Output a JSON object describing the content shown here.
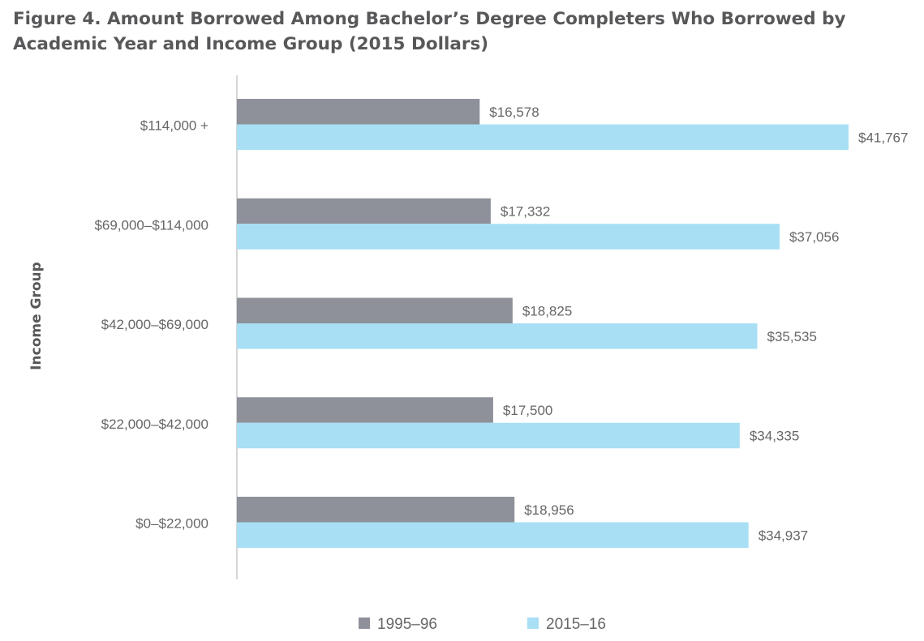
{
  "chart_data": {
    "type": "bar",
    "orientation": "horizontal",
    "title": "Figure 4. Amount Borrowed Among Bachelor’s Degree Completers Who Borrowed by Academic Year and Income Group (2015 Dollars)",
    "ylabel": "Income Group",
    "xlabel": "",
    "categories": [
      "$114,000 +",
      "$69,000–$114,000",
      "$42,000–$69,000",
      "$22,000–$42,000",
      "$0–$22,000"
    ],
    "series": [
      {
        "name": "1995–96",
        "color": "#8e9199",
        "values": [
          16578,
          17332,
          18825,
          17500,
          18956
        ],
        "labels": [
          "$16,578",
          "$17,332",
          "$18,825",
          "$17,500",
          "$18,956"
        ]
      },
      {
        "name": "2015–16",
        "color": "#a8dff5",
        "values": [
          41767,
          37056,
          35535,
          34335,
          34937
        ],
        "labels": [
          "$41,767",
          "$37,056",
          "$35,535",
          "$34,335",
          "$34,937"
        ]
      }
    ],
    "xlim": [
      0,
      41767
    ],
    "grid": false,
    "legend": "bottom",
    "axis_color": "#c8c8c8"
  }
}
